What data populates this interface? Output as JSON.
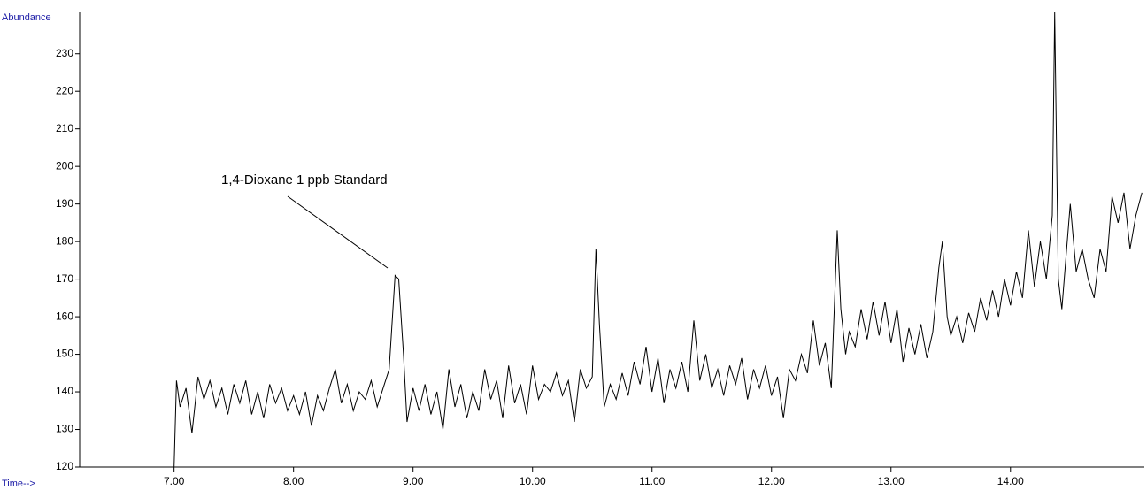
{
  "chart_data": {
    "type": "line",
    "y_label": "Abundance",
    "x_label": "Time-->",
    "annotation": "1,4-Dioxane 1 ppb Standard",
    "color": "#000000",
    "x": [
      7.0,
      7.02,
      7.05,
      7.1,
      7.15,
      7.2,
      7.25,
      7.3,
      7.35,
      7.4,
      7.45,
      7.5,
      7.55,
      7.6,
      7.65,
      7.7,
      7.75,
      7.8,
      7.85,
      7.9,
      7.95,
      8.0,
      8.05,
      8.1,
      8.15,
      8.2,
      8.25,
      8.3,
      8.35,
      8.4,
      8.45,
      8.5,
      8.55,
      8.6,
      8.65,
      8.7,
      8.75,
      8.8,
      8.85,
      8.88,
      8.92,
      8.95,
      9.0,
      9.05,
      9.1,
      9.15,
      9.2,
      9.25,
      9.3,
      9.35,
      9.4,
      9.45,
      9.5,
      9.55,
      9.6,
      9.65,
      9.7,
      9.75,
      9.8,
      9.85,
      9.9,
      9.95,
      10.0,
      10.05,
      10.1,
      10.15,
      10.2,
      10.25,
      10.3,
      10.35,
      10.4,
      10.45,
      10.5,
      10.53,
      10.56,
      10.6,
      10.65,
      10.7,
      10.75,
      10.8,
      10.85,
      10.9,
      10.95,
      11.0,
      11.05,
      11.1,
      11.15,
      11.2,
      11.25,
      11.3,
      11.35,
      11.4,
      11.45,
      11.5,
      11.55,
      11.6,
      11.65,
      11.7,
      11.75,
      11.8,
      11.85,
      11.9,
      11.95,
      12.0,
      12.05,
      12.1,
      12.15,
      12.2,
      12.25,
      12.3,
      12.35,
      12.4,
      12.45,
      12.5,
      12.55,
      12.58,
      12.62,
      12.65,
      12.7,
      12.75,
      12.8,
      12.85,
      12.9,
      12.95,
      13.0,
      13.05,
      13.1,
      13.15,
      13.2,
      13.25,
      13.3,
      13.35,
      13.4,
      13.43,
      13.47,
      13.5,
      13.55,
      13.6,
      13.65,
      13.7,
      13.75,
      13.8,
      13.85,
      13.9,
      13.95,
      14.0,
      14.05,
      14.1,
      14.15,
      14.2,
      14.25,
      14.3,
      14.35,
      14.37,
      14.4,
      14.43,
      14.47,
      14.5,
      14.55,
      14.6,
      14.65,
      14.7,
      14.75,
      14.8,
      14.85,
      14.9,
      14.95,
      15.0,
      15.05,
      15.1
    ],
    "values": [
      120,
      143,
      136,
      141,
      129,
      144,
      138,
      143,
      136,
      141,
      134,
      142,
      137,
      143,
      134,
      140,
      133,
      142,
      137,
      141,
      135,
      139,
      134,
      140,
      131,
      139,
      135,
      141,
      146,
      137,
      142,
      135,
      140,
      138,
      143,
      136,
      141,
      146,
      171,
      170,
      150,
      132,
      141,
      135,
      142,
      134,
      140,
      130,
      146,
      136,
      142,
      133,
      140,
      135,
      146,
      138,
      143,
      133,
      147,
      137,
      142,
      134,
      147,
      138,
      142,
      140,
      145,
      139,
      143,
      132,
      146,
      141,
      144,
      178,
      158,
      136,
      142,
      138,
      145,
      139,
      148,
      142,
      152,
      140,
      149,
      137,
      146,
      141,
      148,
      140,
      159,
      143,
      150,
      141,
      146,
      139,
      147,
      142,
      149,
      138,
      146,
      141,
      147,
      139,
      144,
      133,
      146,
      143,
      150,
      145,
      159,
      147,
      153,
      141,
      183,
      162,
      150,
      156,
      152,
      162,
      154,
      164,
      155,
      164,
      153,
      162,
      148,
      157,
      150,
      158,
      149,
      156,
      173,
      180,
      160,
      155,
      160,
      153,
      161,
      156,
      165,
      159,
      167,
      160,
      170,
      163,
      172,
      165,
      183,
      168,
      180,
      170,
      187,
      241,
      170,
      162,
      178,
      190,
      172,
      178,
      170,
      165,
      178,
      172,
      192,
      185,
      193,
      178,
      187,
      193
    ],
    "xlim": [
      6.21,
      15.12
    ],
    "xticks": [
      {
        "value": 7,
        "label": "7.00"
      },
      {
        "value": 8,
        "label": "8.00"
      },
      {
        "value": 9,
        "label": "9.00"
      },
      {
        "value": 10,
        "label": "10.00"
      },
      {
        "value": 11,
        "label": "11.00"
      },
      {
        "value": 12,
        "label": "12.00"
      },
      {
        "value": 13,
        "label": "13.00"
      },
      {
        "value": 14,
        "label": "14.00"
      }
    ],
    "ylim": [
      120,
      241
    ],
    "yticks": [
      120,
      130,
      140,
      150,
      160,
      170,
      180,
      190,
      200,
      210,
      220,
      230
    ]
  }
}
